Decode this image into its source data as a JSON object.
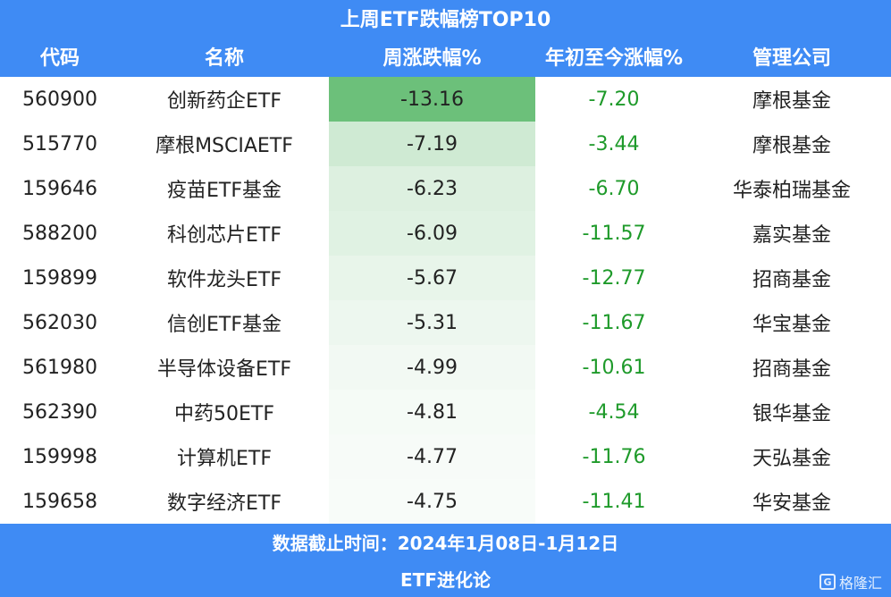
{
  "title": "上周ETF跌幅榜TOP10",
  "headers": [
    "代码",
    "名称",
    "周涨跌幅%",
    "年初至今涨幅%",
    "管理公司"
  ],
  "rows": [
    {
      "code": "560900",
      "name": "创新药企ETF",
      "week": "-13.16",
      "ytd": "-7.20",
      "company": "摩根基金",
      "shade": "#6cc07a"
    },
    {
      "code": "515770",
      "name": "摩根MSCIAETF",
      "week": "-7.19",
      "ytd": "-3.44",
      "company": "摩根基金",
      "shade": "#cfead3"
    },
    {
      "code": "159646",
      "name": "疫苗ETF基金",
      "week": "-6.23",
      "ytd": "-6.70",
      "company": "华泰柏瑞基金",
      "shade": "#ddf0e0"
    },
    {
      "code": "588200",
      "name": "科创芯片ETF",
      "week": "-6.09",
      "ytd": "-11.57",
      "company": "嘉实基金",
      "shade": "#e0f2e3"
    },
    {
      "code": "159899",
      "name": "软件龙头ETF",
      "week": "-5.67",
      "ytd": "-12.77",
      "company": "招商基金",
      "shade": "#e8f5ea"
    },
    {
      "code": "562030",
      "name": "信创ETF基金",
      "week": "-5.31",
      "ytd": "-11.67",
      "company": "华宝基金",
      "shade": "#edf7ef"
    },
    {
      "code": "561980",
      "name": "半导体设备ETF",
      "week": "-4.99",
      "ytd": "-10.61",
      "company": "招商基金",
      "shade": "#f2f9f3"
    },
    {
      "code": "562390",
      "name": "中药50ETF",
      "week": "-4.81",
      "ytd": "-4.54",
      "company": "银华基金",
      "shade": "#f5fbf6"
    },
    {
      "code": "159998",
      "name": "计算机ETF",
      "week": "-4.77",
      "ytd": "-11.76",
      "company": "天弘基金",
      "shade": "#f7fbf8"
    },
    {
      "code": "159658",
      "name": "数字经济ETF",
      "week": "-4.75",
      "ytd": "-11.41",
      "company": "华安基金",
      "shade": "#f8fcf9"
    }
  ],
  "footer_date": "数据截止时间：2024年1月08日-1月12日",
  "footer_brand": "ETF进化论",
  "watermark": {
    "logo": "G",
    "text": "格隆汇"
  },
  "colors": {
    "header_bg": "#3f8bf4",
    "ytd_text": "#1e9a2a"
  }
}
